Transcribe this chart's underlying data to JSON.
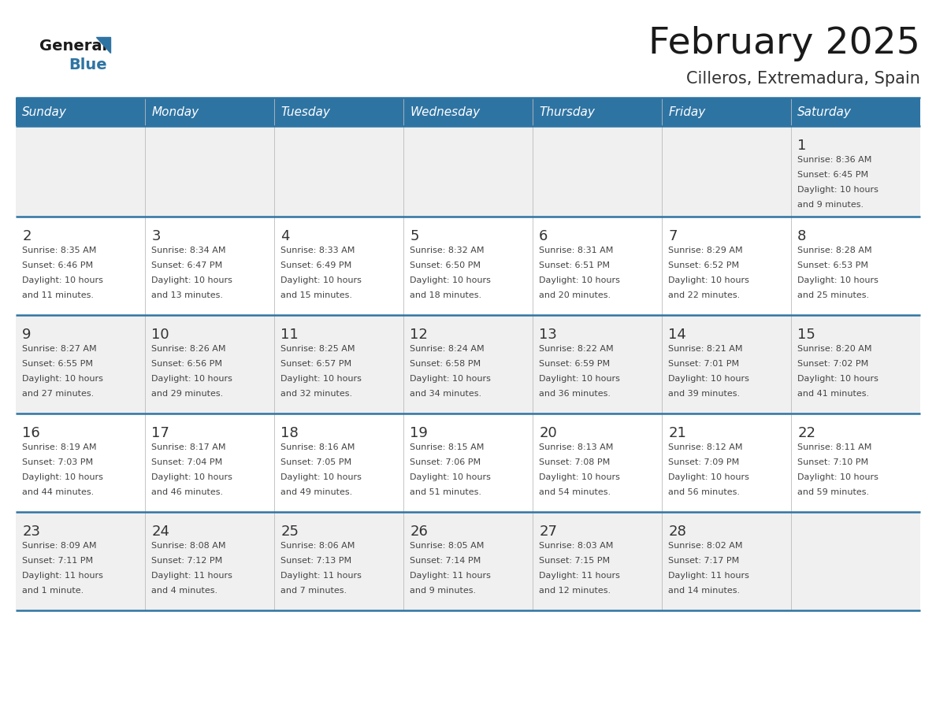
{
  "title": "February 2025",
  "subtitle": "Cilleros, Extremadura, Spain",
  "days_of_week": [
    "Sunday",
    "Monday",
    "Tuesday",
    "Wednesday",
    "Thursday",
    "Friday",
    "Saturday"
  ],
  "header_bg": "#2E74A3",
  "header_text": "#FFFFFF",
  "cell_bg_light": "#FFFFFF",
  "cell_bg_dark": "#F0F0F0",
  "divider_color": "#2E74A3",
  "day_num_color": "#333333",
  "info_text_color": "#444444",
  "border_color": "#2E74A3",
  "calendar_data": [
    [
      null,
      null,
      null,
      null,
      null,
      null,
      {
        "day": 1,
        "sunrise": "8:36 AM",
        "sunset": "6:45 PM",
        "daylight": "10 hours\nand 9 minutes."
      }
    ],
    [
      {
        "day": 2,
        "sunrise": "8:35 AM",
        "sunset": "6:46 PM",
        "daylight": "10 hours\nand 11 minutes."
      },
      {
        "day": 3,
        "sunrise": "8:34 AM",
        "sunset": "6:47 PM",
        "daylight": "10 hours\nand 13 minutes."
      },
      {
        "day": 4,
        "sunrise": "8:33 AM",
        "sunset": "6:49 PM",
        "daylight": "10 hours\nand 15 minutes."
      },
      {
        "day": 5,
        "sunrise": "8:32 AM",
        "sunset": "6:50 PM",
        "daylight": "10 hours\nand 18 minutes."
      },
      {
        "day": 6,
        "sunrise": "8:31 AM",
        "sunset": "6:51 PM",
        "daylight": "10 hours\nand 20 minutes."
      },
      {
        "day": 7,
        "sunrise": "8:29 AM",
        "sunset": "6:52 PM",
        "daylight": "10 hours\nand 22 minutes."
      },
      {
        "day": 8,
        "sunrise": "8:28 AM",
        "sunset": "6:53 PM",
        "daylight": "10 hours\nand 25 minutes."
      }
    ],
    [
      {
        "day": 9,
        "sunrise": "8:27 AM",
        "sunset": "6:55 PM",
        "daylight": "10 hours\nand 27 minutes."
      },
      {
        "day": 10,
        "sunrise": "8:26 AM",
        "sunset": "6:56 PM",
        "daylight": "10 hours\nand 29 minutes."
      },
      {
        "day": 11,
        "sunrise": "8:25 AM",
        "sunset": "6:57 PM",
        "daylight": "10 hours\nand 32 minutes."
      },
      {
        "day": 12,
        "sunrise": "8:24 AM",
        "sunset": "6:58 PM",
        "daylight": "10 hours\nand 34 minutes."
      },
      {
        "day": 13,
        "sunrise": "8:22 AM",
        "sunset": "6:59 PM",
        "daylight": "10 hours\nand 36 minutes."
      },
      {
        "day": 14,
        "sunrise": "8:21 AM",
        "sunset": "7:01 PM",
        "daylight": "10 hours\nand 39 minutes."
      },
      {
        "day": 15,
        "sunrise": "8:20 AM",
        "sunset": "7:02 PM",
        "daylight": "10 hours\nand 41 minutes."
      }
    ],
    [
      {
        "day": 16,
        "sunrise": "8:19 AM",
        "sunset": "7:03 PM",
        "daylight": "10 hours\nand 44 minutes."
      },
      {
        "day": 17,
        "sunrise": "8:17 AM",
        "sunset": "7:04 PM",
        "daylight": "10 hours\nand 46 minutes."
      },
      {
        "day": 18,
        "sunrise": "8:16 AM",
        "sunset": "7:05 PM",
        "daylight": "10 hours\nand 49 minutes."
      },
      {
        "day": 19,
        "sunrise": "8:15 AM",
        "sunset": "7:06 PM",
        "daylight": "10 hours\nand 51 minutes."
      },
      {
        "day": 20,
        "sunrise": "8:13 AM",
        "sunset": "7:08 PM",
        "daylight": "10 hours\nand 54 minutes."
      },
      {
        "day": 21,
        "sunrise": "8:12 AM",
        "sunset": "7:09 PM",
        "daylight": "10 hours\nand 56 minutes."
      },
      {
        "day": 22,
        "sunrise": "8:11 AM",
        "sunset": "7:10 PM",
        "daylight": "10 hours\nand 59 minutes."
      }
    ],
    [
      {
        "day": 23,
        "sunrise": "8:09 AM",
        "sunset": "7:11 PM",
        "daylight": "11 hours\nand 1 minute."
      },
      {
        "day": 24,
        "sunrise": "8:08 AM",
        "sunset": "7:12 PM",
        "daylight": "11 hours\nand 4 minutes."
      },
      {
        "day": 25,
        "sunrise": "8:06 AM",
        "sunset": "7:13 PM",
        "daylight": "11 hours\nand 7 minutes."
      },
      {
        "day": 26,
        "sunrise": "8:05 AM",
        "sunset": "7:14 PM",
        "daylight": "11 hours\nand 9 minutes."
      },
      {
        "day": 27,
        "sunrise": "8:03 AM",
        "sunset": "7:15 PM",
        "daylight": "11 hours\nand 12 minutes."
      },
      {
        "day": 28,
        "sunrise": "8:02 AM",
        "sunset": "7:17 PM",
        "daylight": "11 hours\nand 14 minutes."
      },
      null
    ]
  ]
}
